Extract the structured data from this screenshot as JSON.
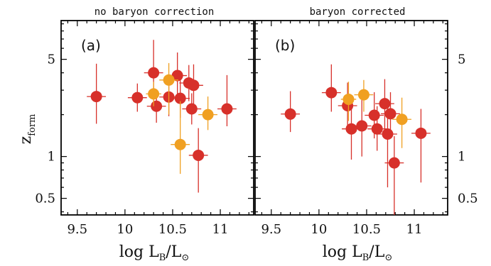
{
  "chart_data": {
    "type": "scatter",
    "ylabel": {
      "main": "z",
      "sub": "form"
    },
    "xlabel": {
      "main": "log L",
      "sub1": "B",
      "mid": "/L",
      "sub2": "⊙"
    },
    "y_scale": "log",
    "ylim": [
      0.38,
      9.5
    ],
    "y_ticks": [
      "0.5",
      "1",
      "5"
    ],
    "y_tick_values": [
      0.5,
      1,
      5
    ],
    "x_ticks": [
      "9.5",
      "10",
      "10.5",
      "11"
    ],
    "x_tick_values": [
      9.5,
      10,
      10.5,
      11
    ],
    "colors": {
      "red": "#d7302a",
      "orange": "#f0a022",
      "frame": "#000000"
    },
    "panels": [
      {
        "tag": "(a)",
        "title": "no baryon correction",
        "xlim": [
          9.33,
          11.35
        ],
        "points": [
          {
            "x": 9.7,
            "y": 2.7,
            "x_err": 0.1,
            "y_lo": 1.72,
            "y_hi": 4.65,
            "color": "red"
          },
          {
            "x": 10.13,
            "y": 2.65,
            "x_err": 0.1,
            "y_lo": 2.1,
            "y_hi": 3.35,
            "color": "red"
          },
          {
            "x": 10.3,
            "y": 4.0,
            "x_err": 0.1,
            "y_lo": 2.5,
            "y_hi": 6.9,
            "color": "red"
          },
          {
            "x": 10.33,
            "y": 2.3,
            "x_err": 0.1,
            "y_lo": 1.75,
            "y_hi": 3.0,
            "color": "red"
          },
          {
            "x": 10.46,
            "y": 2.68,
            "x_err": 0.1,
            "y_lo": 1.95,
            "y_hi": 3.7,
            "color": "red"
          },
          {
            "x": 10.55,
            "y": 3.82,
            "x_err": 0.1,
            "y_lo": 2.6,
            "y_hi": 5.6,
            "color": "red"
          },
          {
            "x": 10.58,
            "y": 2.62,
            "x_err": 0.1,
            "y_lo": 1.9,
            "y_hi": 3.6,
            "color": "red"
          },
          {
            "x": 10.67,
            "y": 3.38,
            "x_err": 0.1,
            "y_lo": 2.5,
            "y_hi": 4.55,
            "color": "red"
          },
          {
            "x": 10.7,
            "y": 2.2,
            "x_err": 0.1,
            "y_lo": 1.7,
            "y_hi": 2.85,
            "color": "red"
          },
          {
            "x": 10.72,
            "y": 3.25,
            "x_err": 0.1,
            "y_lo": 2.3,
            "y_hi": 4.6,
            "color": "red"
          },
          {
            "x": 10.77,
            "y": 1.02,
            "x_err": 0.1,
            "y_lo": 0.55,
            "y_hi": 1.6,
            "color": "red"
          },
          {
            "x": 11.07,
            "y": 2.2,
            "x_err": 0.1,
            "y_lo": 1.65,
            "y_hi": 3.85,
            "color": "red"
          },
          {
            "x": 10.3,
            "y": 2.82,
            "x_err": 0.08,
            "y_lo": 2.3,
            "y_hi": 3.45,
            "color": "orange"
          },
          {
            "x": 10.46,
            "y": 3.55,
            "x_err": 0.1,
            "y_lo": 2.0,
            "y_hi": 4.7,
            "color": "orange"
          },
          {
            "x": 10.58,
            "y": 1.22,
            "x_err": 0.1,
            "y_lo": 0.75,
            "y_hi": 2.5,
            "color": "orange"
          },
          {
            "x": 10.87,
            "y": 2.0,
            "x_err": 0.1,
            "y_lo": 1.55,
            "y_hi": 2.7,
            "color": "orange"
          }
        ]
      },
      {
        "tag": "(b)",
        "title": "baryon corrected",
        "xlim": [
          9.33,
          11.35
        ],
        "points": [
          {
            "x": 9.7,
            "y": 2.02,
            "x_err": 0.1,
            "y_lo": 1.5,
            "y_hi": 2.95,
            "color": "red"
          },
          {
            "x": 10.13,
            "y": 2.88,
            "x_err": 0.1,
            "y_lo": 2.1,
            "y_hi": 4.6,
            "color": "red"
          },
          {
            "x": 10.3,
            "y": 2.32,
            "x_err": 0.1,
            "y_lo": 1.6,
            "y_hi": 3.4,
            "color": "red"
          },
          {
            "x": 10.34,
            "y": 1.58,
            "x_err": 0.1,
            "y_lo": 0.95,
            "y_hi": 2.6,
            "color": "red"
          },
          {
            "x": 10.45,
            "y": 1.66,
            "x_err": 0.1,
            "y_lo": 1.0,
            "y_hi": 2.8,
            "color": "red"
          },
          {
            "x": 10.58,
            "y": 1.98,
            "x_err": 0.1,
            "y_lo": 1.35,
            "y_hi": 2.9,
            "color": "red"
          },
          {
            "x": 10.61,
            "y": 1.58,
            "x_err": 0.1,
            "y_lo": 1.1,
            "y_hi": 2.3,
            "color": "red"
          },
          {
            "x": 10.69,
            "y": 2.4,
            "x_err": 0.1,
            "y_lo": 1.55,
            "y_hi": 3.6,
            "color": "red"
          },
          {
            "x": 10.72,
            "y": 1.45,
            "x_err": 0.1,
            "y_lo": 0.6,
            "y_hi": 2.5,
            "color": "red"
          },
          {
            "x": 10.75,
            "y": 2.03,
            "x_err": 0.1,
            "y_lo": 1.4,
            "y_hi": 2.9,
            "color": "red"
          },
          {
            "x": 10.79,
            "y": 0.9,
            "x_err": 0.1,
            "y_lo": 0.38,
            "y_hi": 1.4,
            "color": "red"
          },
          {
            "x": 11.07,
            "y": 1.47,
            "x_err": 0.1,
            "y_lo": 0.65,
            "y_hi": 2.2,
            "color": "red"
          },
          {
            "x": 10.31,
            "y": 2.58,
            "x_err": 0.08,
            "y_lo": 1.8,
            "y_hi": 3.45,
            "color": "orange"
          },
          {
            "x": 10.47,
            "y": 2.78,
            "x_err": 0.1,
            "y_lo": 2.1,
            "y_hi": 3.55,
            "color": "orange"
          },
          {
            "x": 10.87,
            "y": 1.85,
            "x_err": 0.1,
            "y_lo": 1.15,
            "y_hi": 2.65,
            "color": "orange"
          }
        ]
      }
    ]
  }
}
